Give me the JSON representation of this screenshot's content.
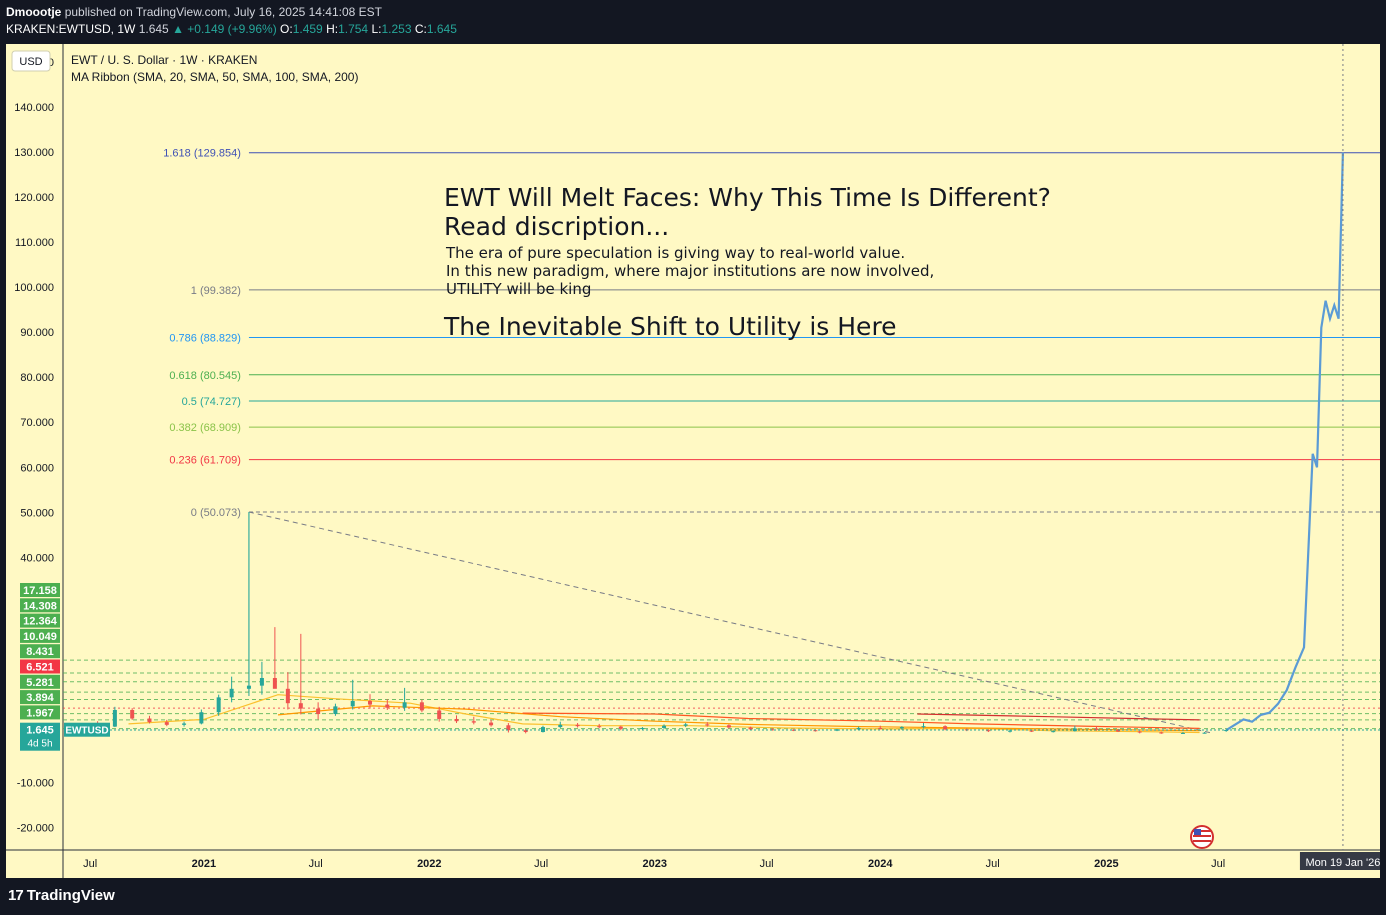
{
  "header": {
    "author": "Dmoootje",
    "published": "published on TradingView.com, July 16, 2025 14:41:08 EST",
    "symbol_line": "KRAKEN:EWTUSD, 1W",
    "last": "1.645",
    "change": "▲ +0.149 (+9.96%)",
    "o_label": "O:",
    "o_value": "1.459",
    "h_label": "H:",
    "h_value": "1.754",
    "l_label": "L:",
    "l_value": "1.253",
    "c_label": "C:",
    "c_value": "1.645"
  },
  "legend": {
    "title": "EWT / U. S. Dollar · 1W · KRAKEN",
    "indicator": "MA Ribbon (SMA, 20, SMA, 50, SMA, 100, SMA, 200)",
    "currency": "USD"
  },
  "footer": {
    "brand": "TradingView"
  },
  "colors": {
    "background": "#fff9c4",
    "frame": "#131722",
    "up": "#26a69a",
    "down": "#ef5350",
    "projection": "#5b9bd5"
  },
  "chart_data": {
    "type": "candlestick",
    "symbol": "EWTUSD",
    "timeframe": "1W",
    "ylim": [
      -25,
      154
    ],
    "y_ticks": [
      150,
      140,
      130,
      120,
      110,
      100,
      90,
      80,
      70,
      60,
      50,
      40,
      -10,
      -20
    ],
    "y_tick_labels": [
      "150.000",
      "140.000",
      "130.000",
      "120.000",
      "110.000",
      "100.000",
      "90.000",
      "80.000",
      "70.000",
      "60.000",
      "50.000",
      "40.000",
      "-10.000",
      "-20.000"
    ],
    "x_range": [
      "2020-05-18",
      "2026-03-20"
    ],
    "x_ticks": [
      {
        "date": "2020-07-01",
        "label": "Jul",
        "major": false
      },
      {
        "date": "2021-01-01",
        "label": "2021",
        "major": true
      },
      {
        "date": "2021-07-01",
        "label": "Jul",
        "major": false
      },
      {
        "date": "2022-01-01",
        "label": "2022",
        "major": true
      },
      {
        "date": "2022-07-01",
        "label": "Jul",
        "major": false
      },
      {
        "date": "2023-01-01",
        "label": "2023",
        "major": true
      },
      {
        "date": "2023-07-01",
        "label": "Jul",
        "major": false
      },
      {
        "date": "2024-01-01",
        "label": "2024",
        "major": true
      },
      {
        "date": "2024-07-01",
        "label": "Jul",
        "major": false
      },
      {
        "date": "2025-01-01",
        "label": "2025",
        "major": true
      },
      {
        "date": "2025-07-01",
        "label": "Jul",
        "major": false
      }
    ],
    "cursor_label": "Mon 19 Jan '26",
    "cursor_date": "2026-01-19",
    "price_labels": [
      {
        "value": 17.158,
        "text": "17.158",
        "color": "#4caf50"
      },
      {
        "value": 14.308,
        "text": "14.308",
        "color": "#4caf50"
      },
      {
        "value": 12.364,
        "text": "12.364",
        "color": "#4caf50"
      },
      {
        "value": 10.049,
        "text": "10.049",
        "color": "#4caf50"
      },
      {
        "value": 8.431,
        "text": "8.431",
        "color": "#4caf50"
      },
      {
        "value": 6.521,
        "text": "6.521",
        "color": "#f23645"
      },
      {
        "value": 5.281,
        "text": "5.281",
        "color": "#4caf50"
      },
      {
        "value": 3.894,
        "text": "3.894",
        "color": "#4caf50"
      },
      {
        "value": 1.967,
        "text": "1.967",
        "color": "#4caf50"
      }
    ],
    "last_price": {
      "value": 1.645,
      "text": "1.645",
      "countdown": "4d 5h",
      "symbol": "EWTUSD",
      "color": "#26a69a"
    },
    "fib_levels": [
      {
        "ratio": "1.618",
        "value": 129.854,
        "label": "1.618 (129.854)",
        "color": "#3f51b5",
        "dashed": false
      },
      {
        "ratio": "1",
        "value": 99.382,
        "label": "1 (99.382)",
        "color": "#787b86",
        "dashed": false
      },
      {
        "ratio": "0.786",
        "value": 88.829,
        "label": "0.786 (88.829)",
        "color": "#2196f3",
        "dashed": false
      },
      {
        "ratio": "0.618",
        "value": 80.545,
        "label": "0.618 (80.545)",
        "color": "#4caf50",
        "dashed": false
      },
      {
        "ratio": "0.5",
        "value": 74.727,
        "label": "0.5 (74.727)",
        "color": "#26a69a",
        "dashed": false
      },
      {
        "ratio": "0.382",
        "value": 68.909,
        "label": "0.382 (68.909)",
        "color": "#8bc34a",
        "dashed": false
      },
      {
        "ratio": "0.236",
        "value": 61.709,
        "label": "0.236 (61.709)",
        "color": "#f23645",
        "dashed": false
      },
      {
        "ratio": "0",
        "value": 50.073,
        "label": "0 (50.073)",
        "color": "#787b86",
        "dashed": true
      }
    ],
    "fib_start_date": "2021-03-15",
    "trend_line": {
      "from": {
        "date": "2021-03-15",
        "value": 50.073
      },
      "to": {
        "date": "2025-06-20",
        "value": 1.0
      }
    },
    "candles": [
      [
        "2020-06-15",
        1.3,
        2.9,
        1.1,
        2.5
      ],
      [
        "2020-07-13",
        2.5,
        3.6,
        1.9,
        2.4
      ],
      [
        "2020-08-10",
        2.4,
        6.8,
        2.3,
        6.1
      ],
      [
        "2020-09-07",
        6.1,
        6.5,
        3.9,
        4.2
      ],
      [
        "2020-10-05",
        4.2,
        4.8,
        3.1,
        3.4
      ],
      [
        "2020-11-02",
        3.4,
        3.9,
        2.5,
        2.8
      ],
      [
        "2020-11-30",
        2.8,
        3.5,
        2.4,
        3.1
      ],
      [
        "2020-12-28",
        3.1,
        6.2,
        2.9,
        5.6
      ],
      [
        "2021-01-25",
        5.6,
        9.5,
        4.8,
        8.9
      ],
      [
        "2021-02-15",
        8.9,
        13.5,
        7.8,
        10.8
      ],
      [
        "2021-03-15",
        10.8,
        50.073,
        9.2,
        11.5
      ],
      [
        "2021-04-05",
        11.5,
        16.8,
        9.5,
        13.2
      ],
      [
        "2021-04-26",
        13.2,
        24.5,
        11.0,
        10.8
      ],
      [
        "2021-05-17",
        10.8,
        14.5,
        6.2,
        7.6
      ],
      [
        "2021-06-07",
        7.6,
        23.0,
        5.1,
        6.4
      ],
      [
        "2021-07-05",
        6.4,
        7.8,
        4.0,
        5.2
      ],
      [
        "2021-08-02",
        5.2,
        7.5,
        4.8,
        6.9
      ],
      [
        "2021-08-30",
        6.9,
        12.8,
        6.2,
        8.1
      ],
      [
        "2021-09-27",
        8.1,
        9.6,
        6.4,
        7.3
      ],
      [
        "2021-10-25",
        7.3,
        8.5,
        6.1,
        6.6
      ],
      [
        "2021-11-22",
        6.6,
        11.0,
        5.9,
        7.8
      ],
      [
        "2021-12-20",
        7.8,
        8.4,
        5.6,
        6.0
      ],
      [
        "2022-01-17",
        6.0,
        6.8,
        3.5,
        4.1
      ],
      [
        "2022-02-14",
        4.1,
        4.9,
        3.2,
        3.6
      ],
      [
        "2022-03-14",
        3.6,
        4.6,
        2.9,
        3.3
      ],
      [
        "2022-04-11",
        3.3,
        3.9,
        2.4,
        2.7
      ],
      [
        "2022-05-09",
        2.7,
        3.2,
        1.1,
        1.6
      ],
      [
        "2022-06-06",
        1.6,
        1.9,
        0.9,
        1.2
      ],
      [
        "2022-07-04",
        1.2,
        2.6,
        1.1,
        2.3
      ],
      [
        "2022-08-01",
        2.3,
        3.5,
        2.1,
        2.8
      ],
      [
        "2022-08-29",
        2.8,
        3.2,
        2.2,
        2.5
      ],
      [
        "2022-10-03",
        2.5,
        3.0,
        2.0,
        2.4
      ],
      [
        "2022-11-07",
        2.4,
        2.6,
        1.6,
        1.9
      ],
      [
        "2022-12-12",
        1.9,
        2.3,
        1.6,
        2.1
      ],
      [
        "2023-01-16",
        2.1,
        2.9,
        1.9,
        2.6
      ],
      [
        "2023-02-20",
        2.6,
        3.2,
        2.3,
        2.9
      ],
      [
        "2023-03-27",
        2.9,
        3.4,
        2.4,
        2.7
      ],
      [
        "2023-05-01",
        2.7,
        2.9,
        2.0,
        2.2
      ],
      [
        "2023-06-05",
        2.2,
        2.4,
        1.6,
        1.8
      ],
      [
        "2023-07-10",
        1.8,
        2.1,
        1.5,
        1.7
      ],
      [
        "2023-08-14",
        1.7,
        1.9,
        1.4,
        1.6
      ],
      [
        "2023-09-18",
        1.6,
        1.8,
        1.3,
        1.5
      ],
      [
        "2023-10-23",
        1.5,
        1.9,
        1.4,
        1.8
      ],
      [
        "2023-11-27",
        1.8,
        2.4,
        1.6,
        2.1
      ],
      [
        "2024-01-01",
        2.1,
        2.6,
        1.8,
        2.0
      ],
      [
        "2024-02-05",
        2.0,
        2.5,
        1.7,
        2.3
      ],
      [
        "2024-03-11",
        2.3,
        3.2,
        2.0,
        2.5
      ],
      [
        "2024-04-15",
        2.5,
        2.7,
        1.6,
        1.8
      ],
      [
        "2024-05-20",
        1.8,
        2.0,
        1.4,
        1.6
      ],
      [
        "2024-06-24",
        1.6,
        1.8,
        1.2,
        1.4
      ],
      [
        "2024-07-29",
        1.4,
        1.7,
        1.1,
        1.5
      ],
      [
        "2024-09-02",
        1.5,
        1.7,
        1.2,
        1.3
      ],
      [
        "2024-10-07",
        1.3,
        1.6,
        1.1,
        1.4
      ],
      [
        "2024-11-11",
        1.4,
        2.6,
        1.3,
        2.0
      ],
      [
        "2024-12-16",
        2.0,
        2.5,
        1.5,
        1.7
      ],
      [
        "2025-01-20",
        1.7,
        1.9,
        1.2,
        1.3
      ],
      [
        "2025-02-24",
        1.3,
        1.5,
        0.9,
        1.1
      ],
      [
        "2025-03-31",
        1.1,
        1.3,
        0.8,
        0.95
      ],
      [
        "2025-05-05",
        0.95,
        1.2,
        0.8,
        1.0
      ],
      [
        "2025-06-09",
        1.0,
        1.2,
        0.85,
        1.05
      ],
      [
        "2025-07-14",
        1.459,
        1.754,
        1.253,
        1.645
      ]
    ],
    "projection_path": [
      [
        "2025-07-14",
        1.6
      ],
      [
        "2025-07-28",
        2.8
      ],
      [
        "2025-08-11",
        4.0
      ],
      [
        "2025-08-25",
        3.5
      ],
      [
        "2025-09-08",
        5.0
      ],
      [
        "2025-09-22",
        5.5
      ],
      [
        "2025-10-06",
        7.5
      ],
      [
        "2025-10-20",
        10.5
      ],
      [
        "2025-11-03",
        15.5
      ],
      [
        "2025-11-17",
        20.0
      ],
      [
        "2025-12-01",
        63.0
      ],
      [
        "2025-12-08",
        60.0
      ],
      [
        "2025-12-15",
        91.0
      ],
      [
        "2025-12-22",
        97.0
      ],
      [
        "2025-12-29",
        93.0
      ],
      [
        "2026-01-05",
        96.0
      ],
      [
        "2026-01-12",
        93.0
      ],
      [
        "2026-01-19",
        129.854
      ]
    ],
    "ma_ribbon": [
      {
        "name": "SMA 20",
        "color": "#fbc02d",
        "points": [
          [
            "2020-09-01",
            3.0
          ],
          [
            "2021-01-01",
            4.0
          ],
          [
            "2021-05-01",
            9.5
          ],
          [
            "2021-08-01",
            8.6
          ],
          [
            "2021-12-01",
            7.6
          ],
          [
            "2022-03-01",
            5.2
          ],
          [
            "2022-06-01",
            3.0
          ],
          [
            "2022-10-01",
            2.6
          ],
          [
            "2023-03-01",
            2.6
          ],
          [
            "2023-08-01",
            2.1
          ],
          [
            "2024-01-01",
            1.9
          ],
          [
            "2024-06-01",
            2.0
          ],
          [
            "2024-10-01",
            1.5
          ],
          [
            "2025-03-01",
            1.3
          ],
          [
            "2025-06-01",
            1.1
          ]
        ]
      },
      {
        "name": "SMA 50",
        "color": "#ff9800",
        "points": [
          [
            "2021-05-01",
            5.0
          ],
          [
            "2021-10-01",
            7.0
          ],
          [
            "2022-03-01",
            6.3
          ],
          [
            "2022-08-01",
            4.6
          ],
          [
            "2023-01-01",
            3.6
          ],
          [
            "2023-06-01",
            2.9
          ],
          [
            "2023-12-01",
            2.4
          ],
          [
            "2024-06-01",
            2.1
          ],
          [
            "2024-12-01",
            1.8
          ],
          [
            "2025-06-01",
            1.5
          ]
        ]
      },
      {
        "name": "SMA 100",
        "color": "#ff5722",
        "points": [
          [
            "2022-06-01",
            5.4
          ],
          [
            "2023-01-01",
            5.2
          ],
          [
            "2023-06-01",
            4.2
          ],
          [
            "2024-01-01",
            3.6
          ],
          [
            "2024-06-01",
            3.0
          ],
          [
            "2025-01-01",
            2.4
          ],
          [
            "2025-06-01",
            2.0
          ]
        ]
      },
      {
        "name": "SMA 200",
        "color": "#d32f2f",
        "points": [
          [
            "2024-03-01",
            5.2
          ],
          [
            "2024-10-01",
            4.6
          ],
          [
            "2025-06-01",
            3.9
          ]
        ]
      }
    ],
    "annotations": {
      "headline": "EWT Will Melt Faces: Why This Time Is Different?",
      "subheadline": "Read discription...",
      "body_1": "The era of pure speculation is giving way to real-world value.",
      "body_2": "In this new paradigm, where major institutions are now involved,",
      "body_3": "UTILITY will be king",
      "callout": "The Inevitable Shift to Utility is Here"
    }
  }
}
